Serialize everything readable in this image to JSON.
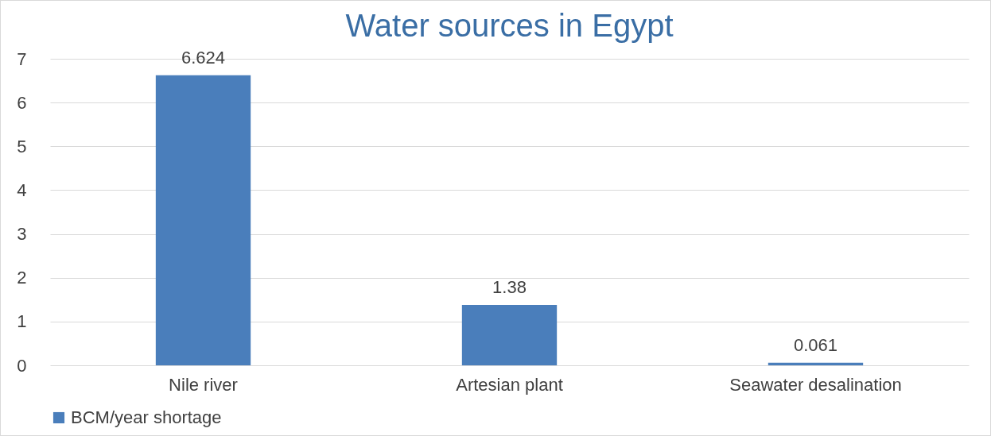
{
  "chart_data": {
    "type": "bar",
    "title": "Water sources in Egypt",
    "categories": [
      "Nile river",
      "Artesian plant",
      "Seawater desalination"
    ],
    "series": [
      {
        "name": "BCM/year shortage",
        "color": "#4a7ebb",
        "values": [
          6.624,
          1.38,
          0.061
        ]
      }
    ],
    "ylim": [
      0,
      7
    ],
    "yticks": [
      0,
      1,
      2,
      3,
      4,
      5,
      6,
      7
    ],
    "grid": "y",
    "legend": "bottom",
    "data_labels": true
  }
}
